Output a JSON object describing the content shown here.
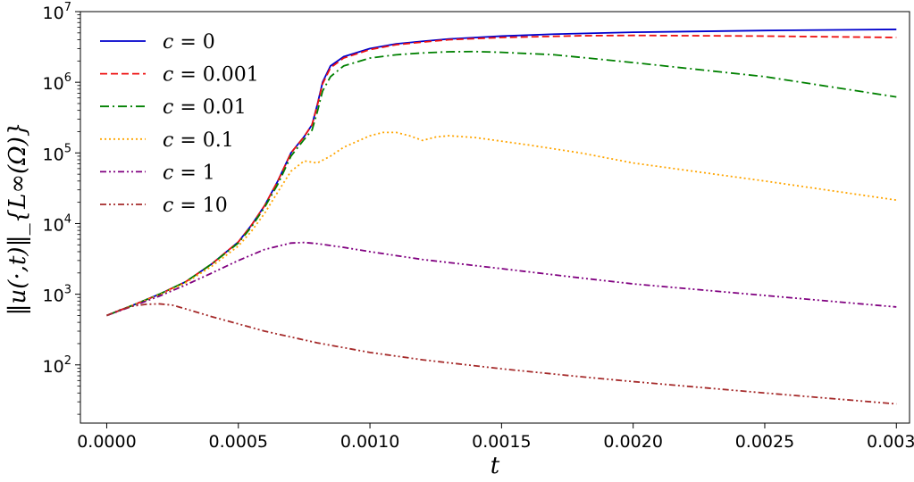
{
  "chart_data": {
    "type": "line",
    "title": "",
    "xlabel": "t",
    "ylabel": "‖u(·,t)‖_{L∞(Ω)}",
    "y_scale": "log",
    "xlim": [
      -0.0001,
      0.00305
    ],
    "ylim": [
      15,
      10000000
    ],
    "x_ticks": [
      0.0,
      0.0005,
      0.001,
      0.0015,
      0.002,
      0.0025,
      0.003
    ],
    "x_tick_labels": [
      "0.0000",
      "0.0005",
      "0.0010",
      "0.0015",
      "0.0020",
      "0.0025",
      "0.0030"
    ],
    "y_ticks": [
      100,
      1000,
      10000,
      100000,
      1000000,
      10000000
    ],
    "y_tick_labels": [
      {
        "base": "10",
        "exp": "2"
      },
      {
        "base": "10",
        "exp": "3"
      },
      {
        "base": "10",
        "exp": "4"
      },
      {
        "base": "10",
        "exp": "5"
      },
      {
        "base": "10",
        "exp": "6"
      },
      {
        "base": "10",
        "exp": "7"
      }
    ],
    "grid": false,
    "legend_position": "top-left",
    "series": [
      {
        "name": "c = 0",
        "lhs": "c",
        "rhs": "0",
        "color": "#0000cc",
        "dash": "solid",
        "points": [
          [
            0,
            500
          ],
          [
            0.0001,
            700
          ],
          [
            0.0002,
            1000
          ],
          [
            0.0003,
            1500
          ],
          [
            0.0004,
            2700
          ],
          [
            0.0005,
            5500
          ],
          [
            0.00055,
            9500
          ],
          [
            0.0006,
            18000
          ],
          [
            0.00065,
            40000
          ],
          [
            0.0007,
            100000
          ],
          [
            0.00075,
            170000
          ],
          [
            0.00078,
            250000
          ],
          [
            0.0008,
            480000
          ],
          [
            0.00082,
            1000000
          ],
          [
            0.00085,
            1700000
          ],
          [
            0.0009,
            2300000
          ],
          [
            0.001,
            3000000
          ],
          [
            0.0011,
            3500000
          ],
          [
            0.0012,
            3800000
          ],
          [
            0.0013,
            4100000
          ],
          [
            0.0015,
            4500000
          ],
          [
            0.0017,
            4800000
          ],
          [
            0.002,
            5100000
          ],
          [
            0.0025,
            5400000
          ],
          [
            0.003,
            5600000
          ]
        ]
      },
      {
        "name": "c = 0.001",
        "lhs": "c",
        "rhs": "0.001",
        "color": "#ee1111",
        "dash": "dashed",
        "points": [
          [
            0,
            500
          ],
          [
            0.0001,
            700
          ],
          [
            0.0002,
            1000
          ],
          [
            0.0003,
            1500
          ],
          [
            0.0004,
            2700
          ],
          [
            0.0005,
            5500
          ],
          [
            0.00055,
            9500
          ],
          [
            0.0006,
            18000
          ],
          [
            0.00065,
            40000
          ],
          [
            0.0007,
            100000
          ],
          [
            0.00075,
            170000
          ],
          [
            0.00078,
            250000
          ],
          [
            0.0008,
            470000
          ],
          [
            0.00082,
            950000
          ],
          [
            0.00085,
            1600000
          ],
          [
            0.0009,
            2200000
          ],
          [
            0.001,
            2900000
          ],
          [
            0.0011,
            3400000
          ],
          [
            0.0012,
            3700000
          ],
          [
            0.0013,
            4000000
          ],
          [
            0.0015,
            4300000
          ],
          [
            0.0018,
            4550000
          ],
          [
            0.002,
            4600000
          ],
          [
            0.0025,
            4500000
          ],
          [
            0.003,
            4300000
          ]
        ]
      },
      {
        "name": "c = 0.01",
        "lhs": "c",
        "rhs": "0.01",
        "color": "#008000",
        "dash": "dashdot",
        "points": [
          [
            0,
            500
          ],
          [
            0.0001,
            700
          ],
          [
            0.0002,
            1000
          ],
          [
            0.0003,
            1500
          ],
          [
            0.0004,
            2700
          ],
          [
            0.0005,
            5300
          ],
          [
            0.00055,
            9000
          ],
          [
            0.0006,
            17000
          ],
          [
            0.00065,
            36000
          ],
          [
            0.0007,
            90000
          ],
          [
            0.00075,
            155000
          ],
          [
            0.00078,
            210000
          ],
          [
            0.0008,
            380000
          ],
          [
            0.00082,
            750000
          ],
          [
            0.00085,
            1200000
          ],
          [
            0.0009,
            1700000
          ],
          [
            0.001,
            2200000
          ],
          [
            0.0011,
            2450000
          ],
          [
            0.0012,
            2600000
          ],
          [
            0.0013,
            2700000
          ],
          [
            0.0014,
            2720000
          ],
          [
            0.0015,
            2650000
          ],
          [
            0.0017,
            2450000
          ],
          [
            0.002,
            1900000
          ],
          [
            0.0025,
            1200000
          ],
          [
            0.003,
            620000
          ]
        ]
      },
      {
        "name": "c = 0.1",
        "lhs": "c",
        "rhs": "0.1",
        "color": "#ffa500",
        "dash": "dotted",
        "points": [
          [
            0,
            500
          ],
          [
            0.0001,
            700
          ],
          [
            0.0002,
            980
          ],
          [
            0.0003,
            1450
          ],
          [
            0.0004,
            2500
          ],
          [
            0.0005,
            4800
          ],
          [
            0.00055,
            7800
          ],
          [
            0.0006,
            14000
          ],
          [
            0.00065,
            28000
          ],
          [
            0.0007,
            55000
          ],
          [
            0.00075,
            77000
          ],
          [
            0.0008,
            72000
          ],
          [
            0.00085,
            90000
          ],
          [
            0.0009,
            120000
          ],
          [
            0.001,
            175000
          ],
          [
            0.00105,
            195000
          ],
          [
            0.0011,
            195000
          ],
          [
            0.00115,
            175000
          ],
          [
            0.0012,
            150000
          ],
          [
            0.00125,
            168000
          ],
          [
            0.0013,
            175000
          ],
          [
            0.0014,
            165000
          ],
          [
            0.0016,
            130000
          ],
          [
            0.0018,
            100000
          ],
          [
            0.002,
            72000
          ],
          [
            0.0025,
            40000
          ],
          [
            0.003,
            21500
          ]
        ]
      },
      {
        "name": "c = 1",
        "lhs": "c",
        "rhs": "1",
        "color": "#800080",
        "dash": "dashdotdot",
        "points": [
          [
            0,
            500
          ],
          [
            0.0001,
            680
          ],
          [
            0.0002,
            940
          ],
          [
            0.0003,
            1350
          ],
          [
            0.0004,
            2000
          ],
          [
            0.0005,
            3000
          ],
          [
            0.0006,
            4300
          ],
          [
            0.0007,
            5300
          ],
          [
            0.00075,
            5400
          ],
          [
            0.0008,
            5200
          ],
          [
            0.0009,
            4600
          ],
          [
            0.001,
            4000
          ],
          [
            0.0012,
            3100
          ],
          [
            0.0015,
            2300
          ],
          [
            0.0018,
            1700
          ],
          [
            0.002,
            1400
          ],
          [
            0.0025,
            960
          ],
          [
            0.003,
            660
          ]
        ]
      },
      {
        "name": "c = 10",
        "lhs": "c",
        "rhs": "10",
        "color": "#a52a2a",
        "dash": "dashdotdot",
        "points": [
          [
            0,
            500
          ],
          [
            5e-05,
            600
          ],
          [
            0.0001,
            680
          ],
          [
            0.00015,
            720
          ],
          [
            0.0002,
            730
          ],
          [
            0.00025,
            700
          ],
          [
            0.0003,
            620
          ],
          [
            0.0004,
            480
          ],
          [
            0.0005,
            380
          ],
          [
            0.0006,
            300
          ],
          [
            0.0007,
            248
          ],
          [
            0.0008,
            205
          ],
          [
            0.001,
            150
          ],
          [
            0.0012,
            118
          ],
          [
            0.0015,
            88
          ],
          [
            0.0018,
            68
          ],
          [
            0.002,
            58
          ],
          [
            0.0025,
            40
          ],
          [
            0.003,
            28
          ]
        ]
      }
    ]
  }
}
